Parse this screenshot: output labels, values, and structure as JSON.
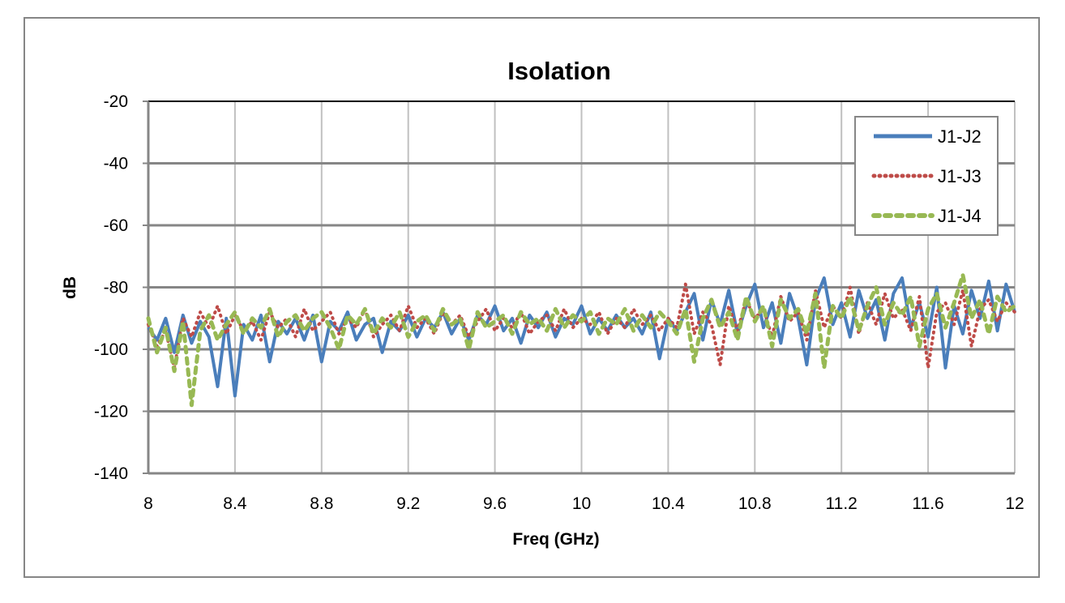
{
  "chart_data": {
    "type": "line",
    "title": "Isolation",
    "xlabel": "Freq (GHz)",
    "ylabel": "dB",
    "xlim": [
      8,
      12
    ],
    "ylim": [
      -140,
      -20
    ],
    "xticks": [
      "8",
      "8.4",
      "8.8",
      "9.2",
      "9.6",
      "10",
      "10.4",
      "10.8",
      "11.2",
      "11.6",
      "12"
    ],
    "yticks": [
      "-20",
      "-40",
      "-60",
      "-80",
      "-100",
      "-120",
      "-140"
    ],
    "grid": true,
    "legend_position": "top-right",
    "x_start": 8,
    "x_step": 0.04,
    "series": [
      {
        "name": "J1-J2",
        "color": "#4a7ebb",
        "style": "solid",
        "values": [
          -93,
          -97,
          -90,
          -101,
          -89,
          -98,
          -91,
          -96,
          -112,
          -90,
          -115,
          -92,
          -97,
          -89,
          -104,
          -91,
          -95,
          -90,
          -97,
          -89,
          -104,
          -91,
          -94,
          -88,
          -97,
          -92,
          -90,
          -101,
          -91,
          -94,
          -89,
          -96,
          -90,
          -93,
          -88,
          -95,
          -90,
          -97,
          -89,
          -92,
          -86,
          -94,
          -90,
          -98,
          -89,
          -93,
          -88,
          -96,
          -90,
          -92,
          -86,
          -95,
          -90,
          -94,
          -89,
          -93,
          -90,
          -95,
          -88,
          -103,
          -90,
          -94,
          -88,
          -82,
          -97,
          -84,
          -92,
          -81,
          -95,
          -86,
          -79,
          -93,
          -85,
          -98,
          -82,
          -90,
          -105,
          -84,
          -77,
          -92,
          -85,
          -96,
          -81,
          -90,
          -84,
          -97,
          -82,
          -77,
          -93,
          -85,
          -96,
          -80,
          -106,
          -86,
          -95,
          -81,
          -90,
          -78,
          -94,
          -79,
          -88
        ]
      },
      {
        "name": "J1-J3",
        "color": "#be4b48",
        "style": "dotted",
        "values": [
          -92,
          -99,
          -94,
          -106,
          -90,
          -96,
          -88,
          -93,
          -86,
          -95,
          -89,
          -94,
          -91,
          -97,
          -88,
          -93,
          -90,
          -96,
          -87,
          -94,
          -91,
          -88,
          -95,
          -90,
          -93,
          -87,
          -96,
          -92,
          -89,
          -94,
          -86,
          -93,
          -90,
          -95,
          -88,
          -92,
          -89,
          -96,
          -91,
          -87,
          -94,
          -90,
          -93,
          -88,
          -95,
          -91,
          -89,
          -94,
          -87,
          -93,
          -90,
          -92,
          -88,
          -95,
          -90,
          -93,
          -87,
          -92,
          -89,
          -94,
          -90,
          -93,
          -79,
          -95,
          -88,
          -92,
          -105,
          -86,
          -94,
          -84,
          -90,
          -87,
          -96,
          -83,
          -91,
          -88,
          -97,
          -81,
          -93,
          -86,
          -90,
          -80,
          -95,
          -85,
          -92,
          -82,
          -90,
          -87,
          -94,
          -83,
          -106,
          -88,
          -85,
          -92,
          -81,
          -99,
          -87,
          -84,
          -91,
          -85,
          -88
        ]
      },
      {
        "name": "J1-J4",
        "color": "#98b954",
        "style": "dashed",
        "values": [
          -90,
          -101,
          -93,
          -107,
          -91,
          -118,
          -94,
          -89,
          -97,
          -92,
          -88,
          -95,
          -90,
          -93,
          -87,
          -96,
          -91,
          -89,
          -94,
          -90,
          -88,
          -93,
          -100,
          -89,
          -92,
          -87,
          -95,
          -90,
          -93,
          -88,
          -96,
          -91,
          -89,
          -94,
          -87,
          -92,
          -90,
          -100,
          -88,
          -93,
          -91,
          -89,
          -95,
          -88,
          -92,
          -90,
          -94,
          -87,
          -93,
          -89,
          -91,
          -88,
          -95,
          -90,
          -92,
          -87,
          -94,
          -89,
          -93,
          -88,
          -91,
          -95,
          -87,
          -104,
          -90,
          -84,
          -93,
          -88,
          -97,
          -83,
          -91,
          -86,
          -99,
          -84,
          -90,
          -87,
          -95,
          -82,
          -106,
          -86,
          -90,
          -83,
          -94,
          -86,
          -80,
          -92,
          -85,
          -89,
          -83,
          -99,
          -87,
          -82,
          -93,
          -85,
          -76,
          -90,
          -84,
          -95,
          -83,
          -88,
          -86
        ]
      }
    ],
    "colors": {
      "frame": "#868686",
      "grid_major": "#868686",
      "grid_minor": "#c0c0c0"
    }
  }
}
